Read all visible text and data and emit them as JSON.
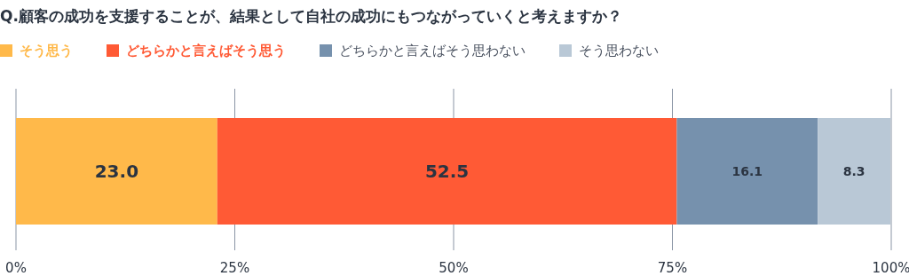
{
  "chart_data": {
    "type": "bar",
    "orientation": "horizontal",
    "stacked": true,
    "title": "Q.顧客の成功を支援することが、結果として自社の成功にもつながっていくと考えますか？",
    "categories": [
      null
    ],
    "series": [
      {
        "name": "そう思う",
        "color": "#ffb94a",
        "values": [
          23.0
        ],
        "value_labels": [
          "23.0"
        ]
      },
      {
        "name": "どちらかと言えばそう思う",
        "color": "#ff5a35",
        "values": [
          52.5
        ],
        "value_labels": [
          "52.5"
        ]
      },
      {
        "name": "どちらかと言えばそう思わない",
        "color": "#7691ad",
        "values": [
          16.1
        ],
        "value_labels": [
          "16.1"
        ]
      },
      {
        "name": "そう思わない",
        "color": "#b9c8d6",
        "values": [
          8.3
        ],
        "value_labels": [
          "8.3"
        ]
      }
    ],
    "xlim": [
      0,
      100
    ],
    "xticks": [
      {
        "value": 0,
        "label": "0%"
      },
      {
        "value": 25,
        "label": "25%"
      },
      {
        "value": 50,
        "label": "50%"
      },
      {
        "value": 75,
        "label": "75%"
      },
      {
        "value": 100,
        "label": "100%"
      }
    ],
    "grid": "x",
    "legend": "top left"
  }
}
